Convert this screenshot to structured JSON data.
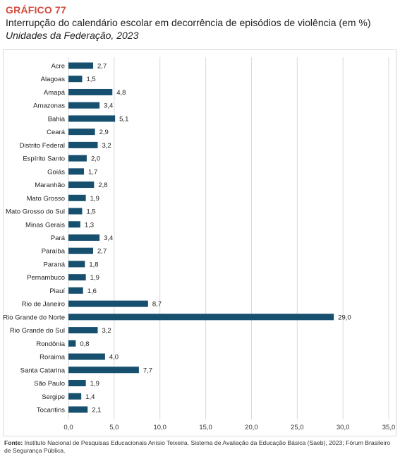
{
  "header": {
    "label": "GRÁFICO 77",
    "title": "Interrupção do calendário escolar em decorrência de episódios de violência (em %)",
    "subtitle": "Unidades da Federação, 2023"
  },
  "source": {
    "prefix": "Fonte:",
    "text": " Instituto Nacional de Pesquisas Educacionais Anísio Teixeira. Sistema de Avaliação da Educação Básica (Saeb), 2023; Fórum Brasileiro de Segurança Pública."
  },
  "colors": {
    "bar": "#17506e",
    "grid": "#d9d9d9",
    "label_accent": "#d24a3c"
  },
  "chart_data": {
    "type": "bar",
    "orientation": "horizontal",
    "categories": [
      "Acre",
      "Alagoas",
      "Amapá",
      "Amazonas",
      "Bahia",
      "Ceará",
      "Distrito Federal",
      "Espírito Santo",
      "Goiás",
      "Maranhão",
      "Mato Grosso",
      "Mato Grosso do Sul",
      "Minas Gerais",
      "Pará",
      "Paraíba",
      "Paraná",
      "Pernambuco",
      "Piauí",
      "Rio de Janeiro",
      "Rio Grande do Norte",
      "Rio Grande do Sul",
      "Rondônia",
      "Roraima",
      "Santa Catarina",
      "São Paulo",
      "Sergipe",
      "Tocantins"
    ],
    "values": [
      2.7,
      1.5,
      4.8,
      3.4,
      5.1,
      2.9,
      3.2,
      2.0,
      1.7,
      2.8,
      1.9,
      1.5,
      1.3,
      3.4,
      2.7,
      1.8,
      1.9,
      1.6,
      8.7,
      29.0,
      3.2,
      0.8,
      4.0,
      7.7,
      1.9,
      1.4,
      2.1
    ],
    "value_labels": [
      "2,7",
      "1,5",
      "4,8",
      "3,4",
      "5,1",
      "2,9",
      "3,2",
      "2,0",
      "1,7",
      "2,8",
      "1,9",
      "1,5",
      "1,3",
      "3,4",
      "2,7",
      "1,8",
      "1,9",
      "1,6",
      "8,7",
      "29,0",
      "3,2",
      "0,8",
      "4,0",
      "7,7",
      "1,9",
      "1,4",
      "2,1"
    ],
    "xlim": [
      0,
      35
    ],
    "xticks": [
      0,
      5,
      10,
      15,
      20,
      25,
      30,
      35
    ],
    "xtick_labels": [
      "0,0",
      "5,0",
      "10,0",
      "15,0",
      "20,0",
      "25,0",
      "30,0",
      "35,0"
    ],
    "grid": "vertical",
    "legend": "none"
  }
}
